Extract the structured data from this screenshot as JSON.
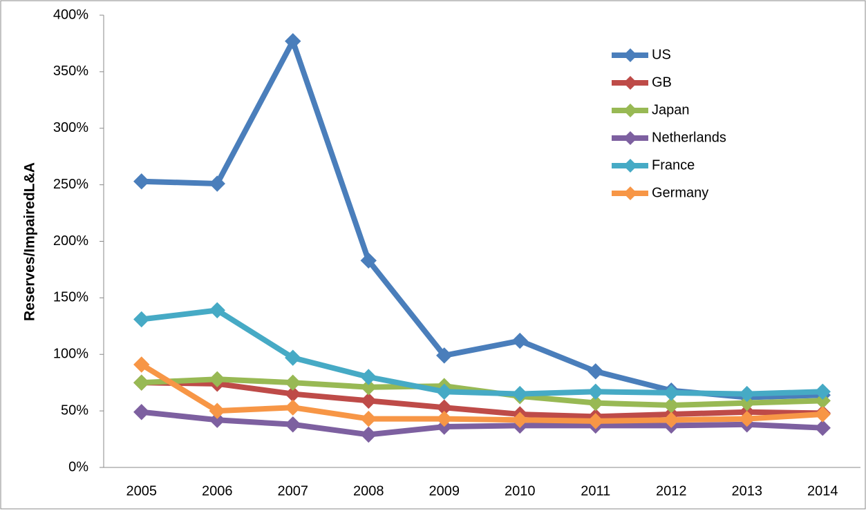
{
  "chart_data": {
    "type": "line",
    "y_label": "Reserves/ImpairedL&A",
    "categories": [
      "2005",
      "2006",
      "2007",
      "2008",
      "2009",
      "2010",
      "2011",
      "2012",
      "2013",
      "2014"
    ],
    "series": [
      {
        "name": "US",
        "color": "#4a7ebb",
        "values": [
          253,
          251,
          377,
          183,
          99,
          112,
          85,
          68,
          62,
          64
        ]
      },
      {
        "name": "GB",
        "color": "#be4b48",
        "values": [
          75,
          74,
          65,
          59,
          53,
          47,
          45,
          47,
          49,
          48
        ]
      },
      {
        "name": "Japan",
        "color": "#98b954",
        "values": [
          75,
          78,
          75,
          71,
          72,
          63,
          57,
          55,
          57,
          59
        ]
      },
      {
        "name": "Netherlands",
        "color": "#7d60a0",
        "values": [
          49,
          42,
          38,
          29,
          36,
          37,
          37,
          37,
          38,
          35
        ]
      },
      {
        "name": "France",
        "color": "#46aac5",
        "values": [
          131,
          139,
          97,
          80,
          67,
          65,
          67,
          66,
          65,
          67
        ]
      },
      {
        "name": "Germany",
        "color": "#f79646",
        "values": [
          91,
          50,
          53,
          43,
          43,
          42,
          41,
          42,
          43,
          47
        ]
      }
    ],
    "ylim": [
      0,
      400
    ],
    "yticks": [
      {
        "value": 0,
        "label": "0%"
      },
      {
        "value": 50,
        "label": "50%"
      },
      {
        "value": 100,
        "label": "100%"
      },
      {
        "value": 150,
        "label": "150%"
      },
      {
        "value": 200,
        "label": "200%"
      },
      {
        "value": 250,
        "label": "250%"
      },
      {
        "value": 300,
        "label": "300%"
      },
      {
        "value": 350,
        "label": "350%"
      },
      {
        "value": 400,
        "label": "400%"
      }
    ],
    "grid": false,
    "legend": "upper-right"
  }
}
